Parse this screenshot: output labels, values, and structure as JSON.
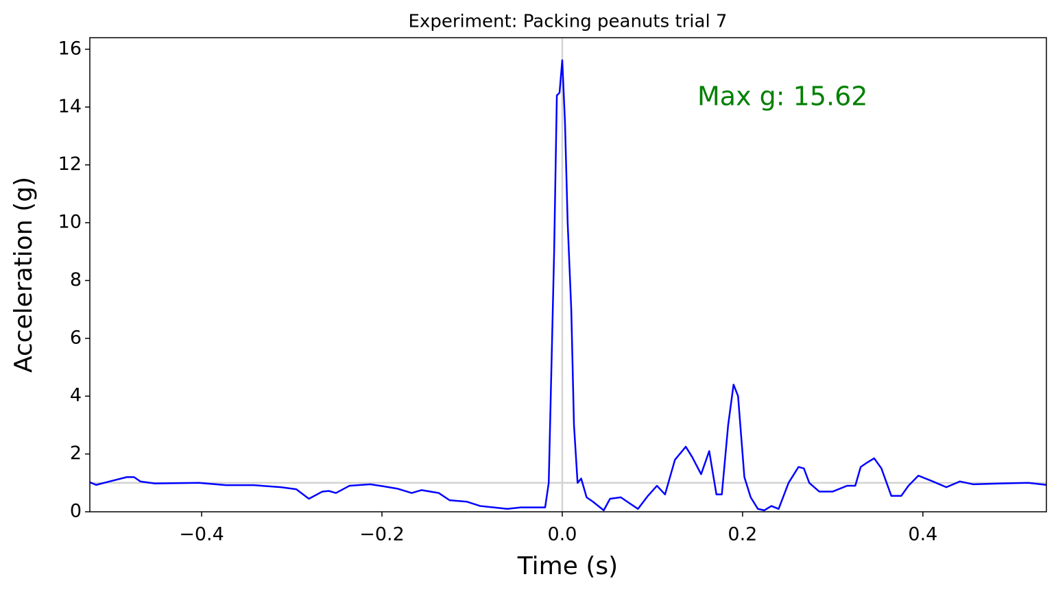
{
  "chart_data": {
    "type": "line",
    "title": "Experiment: Packing peanuts trial 7",
    "xlabel": "Time (s)",
    "ylabel": "Acceleration (g)",
    "annotation": "Max g: 15.62",
    "annotation_color": "#008000",
    "color": "#0000ff",
    "reference_color": "#d3d3d3",
    "vline": 0,
    "hline": 1,
    "x": [
      -0.524,
      -0.517,
      -0.502,
      -0.483,
      -0.475,
      -0.468,
      -0.452,
      -0.403,
      -0.373,
      -0.342,
      -0.312,
      -0.295,
      -0.281,
      -0.266,
      -0.259,
      -0.251,
      -0.236,
      -0.213,
      -0.198,
      -0.183,
      -0.167,
      -0.156,
      -0.137,
      -0.125,
      -0.106,
      -0.091,
      -0.076,
      -0.061,
      -0.046,
      -0.03,
      -0.019,
      -0.015,
      -0.009,
      -0.006,
      -0.003,
      0.0,
      0.003,
      0.006,
      0.01,
      0.013,
      0.017,
      0.021,
      0.027,
      0.034,
      0.046,
      0.053,
      0.065,
      0.072,
      0.084,
      0.095,
      0.105,
      0.114,
      0.125,
      0.137,
      0.144,
      0.154,
      0.163,
      0.171,
      0.177,
      0.184,
      0.19,
      0.195,
      0.202,
      0.209,
      0.217,
      0.224,
      0.232,
      0.24,
      0.251,
      0.262,
      0.268,
      0.274,
      0.285,
      0.3,
      0.316,
      0.325,
      0.331,
      0.338,
      0.346,
      0.354,
      0.365,
      0.376,
      0.384,
      0.395,
      0.411,
      0.426,
      0.441,
      0.456,
      0.487,
      0.517,
      0.537
    ],
    "values": [
      1.02,
      0.93,
      1.05,
      1.2,
      1.2,
      1.05,
      0.98,
      1.0,
      0.92,
      0.92,
      0.85,
      0.78,
      0.45,
      0.7,
      0.72,
      0.65,
      0.9,
      0.95,
      0.88,
      0.8,
      0.65,
      0.75,
      0.65,
      0.4,
      0.35,
      0.2,
      0.15,
      0.1,
      0.15,
      0.15,
      0.15,
      1.0,
      9.0,
      14.4,
      14.5,
      15.62,
      13.5,
      10.0,
      7.0,
      3.0,
      1.0,
      1.15,
      0.5,
      0.35,
      0.05,
      0.45,
      0.5,
      0.35,
      0.1,
      0.55,
      0.9,
      0.6,
      1.8,
      2.25,
      1.9,
      1.3,
      2.1,
      0.6,
      0.6,
      3.0,
      4.4,
      4.0,
      1.2,
      0.5,
      0.1,
      0.05,
      0.2,
      0.1,
      1.0,
      1.55,
      1.5,
      1.0,
      0.7,
      0.7,
      0.9,
      0.9,
      1.55,
      1.7,
      1.85,
      1.5,
      0.55,
      0.55,
      0.9,
      1.25,
      1.05,
      0.85,
      1.05,
      0.95,
      0.98,
      1.0,
      0.93
    ],
    "xlim": [
      -0.524,
      0.537
    ],
    "ylim": [
      0,
      16.4
    ],
    "xticks": [
      {
        "value": -0.4,
        "label": "−0.4"
      },
      {
        "value": -0.2,
        "label": "−0.2"
      },
      {
        "value": 0,
        "label": "0.0"
      },
      0.2,
      0.4
    ],
    "yticks": [
      0,
      2,
      4,
      6,
      8,
      10,
      12,
      14,
      16
    ]
  }
}
